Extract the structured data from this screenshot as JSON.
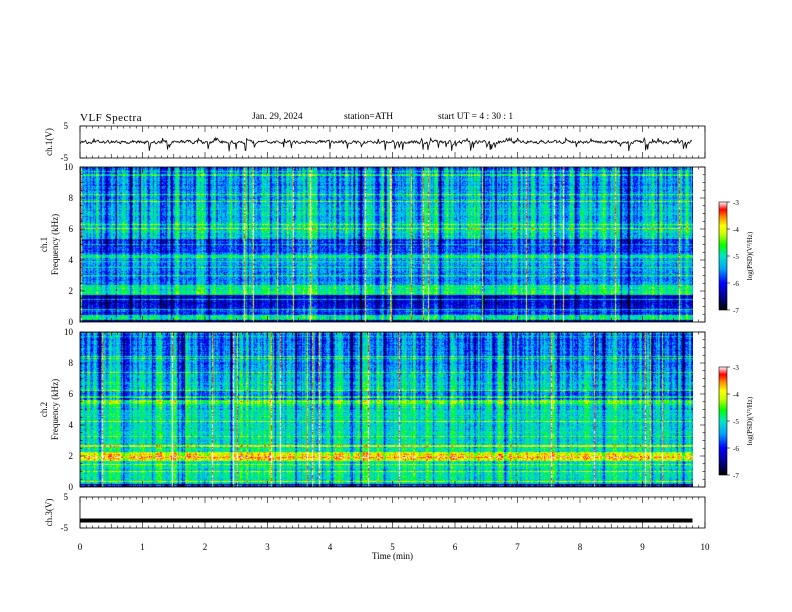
{
  "header": {
    "title": "VLF  Spectra",
    "date": "Jan. 29, 2024",
    "station": "station=ATH",
    "start": "start  UT  =   4  : 30 : 1"
  },
  "chart_data": [
    {
      "type": "line",
      "name": "ch1-waveform",
      "ylabel": "ch.1(V)",
      "ylim": [
        -5,
        5
      ],
      "yticks": [
        "5",
        "-5"
      ],
      "xlim": [
        0,
        10
      ],
      "baseline": 0,
      "amplitude_range": [
        -1.4,
        0.9
      ]
    },
    {
      "type": "heatmap",
      "name": "ch1-spectrogram",
      "ylabel": "ch.1",
      "ylabel2": "Frequency  (kHz)",
      "ylim": [
        0,
        10
      ],
      "yticks": [
        "0",
        "2",
        "4",
        "6",
        "8",
        "10"
      ],
      "xlim": [
        0,
        9.8
      ],
      "colorbar": {
        "label": "log(PSD)(V²/Hz)",
        "range": [
          -7,
          -3
        ],
        "ticks": [
          "-3",
          "-4",
          "-5",
          "-6",
          "-7"
        ]
      }
    },
    {
      "type": "heatmap",
      "name": "ch2-spectrogram",
      "ylabel": "ch.2",
      "ylabel2": "Frequency  (kHz)",
      "ylim": [
        0,
        10
      ],
      "yticks": [
        "0",
        "2",
        "4",
        "6",
        "8",
        "10"
      ],
      "xlim": [
        0,
        9.8
      ],
      "colorbar": {
        "label": "log(PSD)(V²/Hz)",
        "range": [
          -7,
          -3
        ],
        "ticks": [
          "-3",
          "-4",
          "-5",
          "-6",
          "-7"
        ]
      }
    },
    {
      "type": "line",
      "name": "ch3-waveform",
      "ylabel": "ch.3(V)",
      "ylim": [
        -5,
        5
      ],
      "yticks": [
        "5",
        "-5"
      ],
      "xlim": [
        0,
        10
      ],
      "baseline": -2.6
    }
  ],
  "xaxis": {
    "label": "Time  (min)",
    "range": [
      0,
      10
    ],
    "ticks": [
      "0",
      "1",
      "2",
      "3",
      "4",
      "5",
      "6",
      "7",
      "8",
      "9",
      "10"
    ]
  },
  "colors": {
    "frame": "#000000",
    "background": "#ffffff"
  }
}
